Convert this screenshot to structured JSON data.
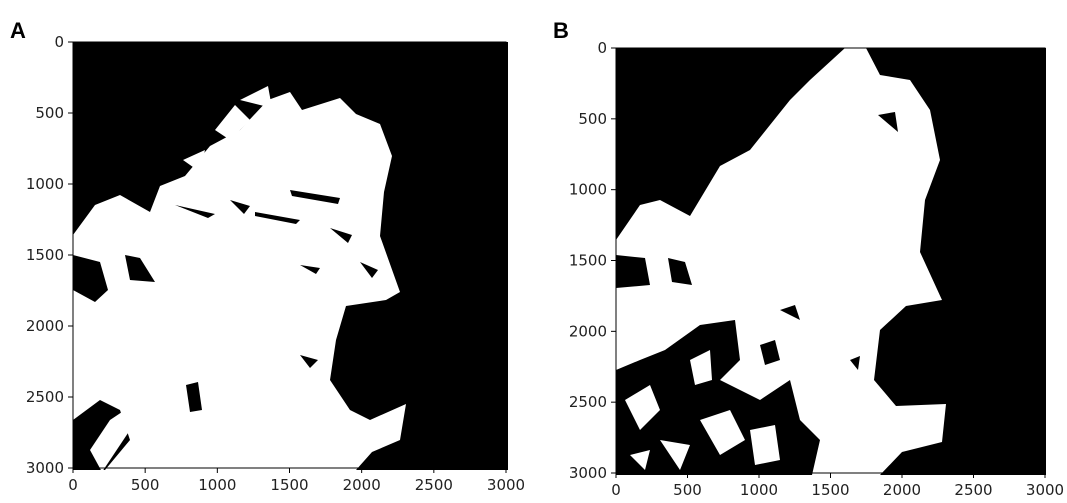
{
  "chart_data": [
    {
      "type": "image",
      "panel_label": "A",
      "xlim": [
        0,
        3000
      ],
      "ylim": [
        3000,
        0
      ],
      "xticks": [
        0,
        500,
        1000,
        1500,
        2000,
        2500,
        3000
      ],
      "yticks": [
        0,
        500,
        1000,
        1500,
        2000,
        2500,
        3000
      ]
    },
    {
      "type": "image",
      "panel_label": "B",
      "xlim": [
        0,
        3000
      ],
      "ylim": [
        3000,
        0
      ],
      "xticks": [
        0,
        500,
        1000,
        1500,
        2000,
        2500,
        3000
      ],
      "yticks": [
        0,
        500,
        1000,
        1500,
        2000,
        2500,
        3000
      ]
    }
  ]
}
